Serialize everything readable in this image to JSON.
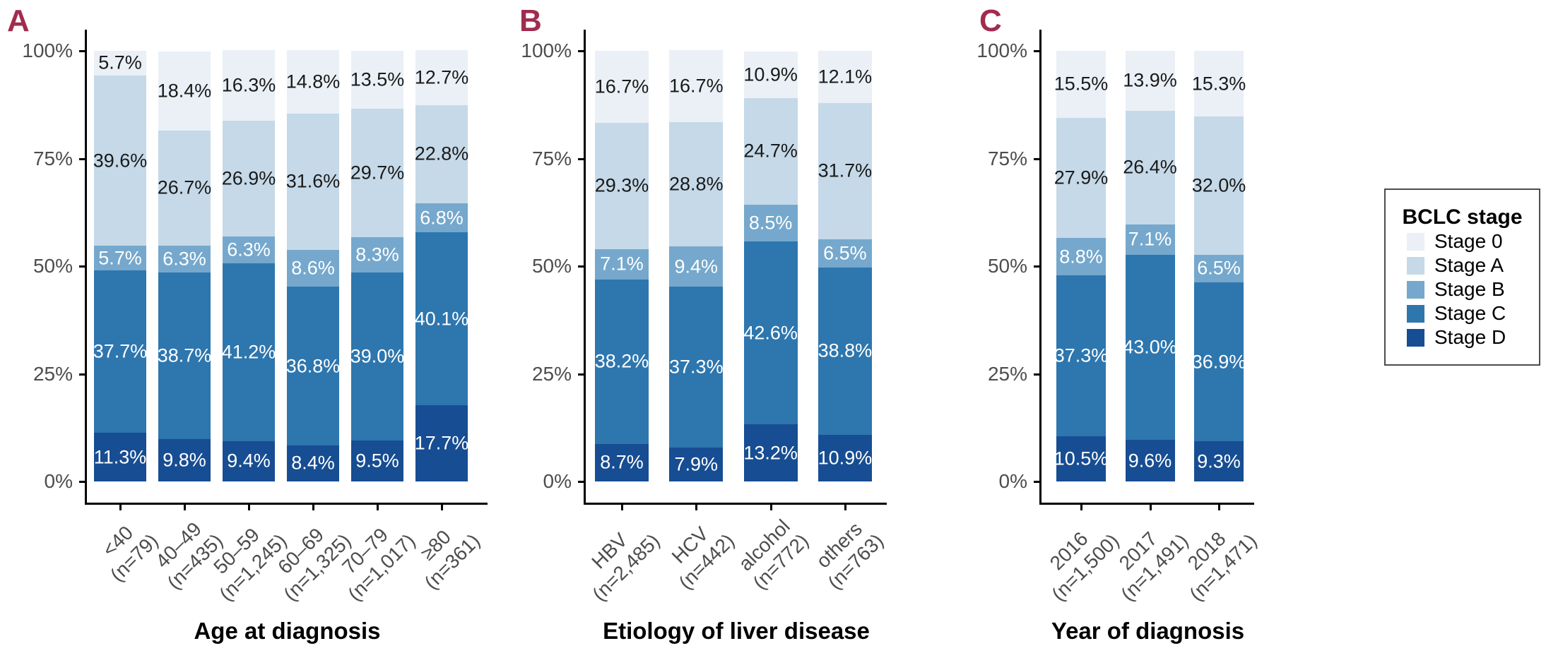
{
  "page": {
    "background": "#ffffff"
  },
  "y_axis": {
    "ticks": [
      "100%",
      "75%",
      "50%",
      "25%",
      "0%"
    ],
    "tick_values": [
      100,
      75,
      50,
      25,
      0
    ]
  },
  "stages": [
    {
      "name": "Stage 0",
      "color": "#eaf0f6",
      "label_color": "#1a1a1a"
    },
    {
      "name": "Stage A",
      "color": "#c5d9e8",
      "label_color": "#1a1a1a"
    },
    {
      "name": "Stage B",
      "color": "#75a8cc",
      "label_color": "#ffffff"
    },
    {
      "name": "Stage C",
      "color": "#2e76ae",
      "label_color": "#ffffff"
    },
    {
      "name": "Stage D",
      "color": "#174d92",
      "label_color": "#ffffff"
    }
  ],
  "legend": {
    "title": "BCLC stage",
    "entries": [
      {
        "label": "Stage 0",
        "color": "#eaf0f6"
      },
      {
        "label": "Stage A",
        "color": "#c5d9e8"
      },
      {
        "label": "Stage B",
        "color": "#75a8cc"
      },
      {
        "label": "Stage C",
        "color": "#2e76ae"
      },
      {
        "label": "Stage D",
        "color": "#174d92"
      }
    ]
  },
  "chart_data": [
    {
      "type": "bar",
      "stacked": true,
      "panel_label": "A",
      "title": "Age at diagnosis",
      "ylim": [
        0,
        100
      ],
      "categories": [
        {
          "line1": "<40",
          "line2": "(n=79)"
        },
        {
          "line1": "40–49",
          "line2": "(n=435)"
        },
        {
          "line1": "50–59",
          "line2": "(n=1,245)"
        },
        {
          "line1": "60–69",
          "line2": "(n=1,325)"
        },
        {
          "line1": "70–79",
          "line2": "(n=1,017)"
        },
        {
          "line1": "≥80",
          "line2": "(n=361)"
        }
      ],
      "series": [
        {
          "name": "Stage 0",
          "values": [
            5.7,
            18.4,
            16.3,
            14.8,
            13.5,
            12.7
          ]
        },
        {
          "name": "Stage A",
          "values": [
            39.6,
            26.7,
            26.9,
            31.6,
            29.7,
            22.8
          ]
        },
        {
          "name": "Stage B",
          "values": [
            5.7,
            6.3,
            6.3,
            8.6,
            8.3,
            6.8
          ]
        },
        {
          "name": "Stage C",
          "values": [
            37.7,
            38.7,
            41.2,
            36.8,
            39.0,
            40.1
          ]
        },
        {
          "name": "Stage D",
          "values": [
            11.3,
            9.8,
            9.4,
            8.4,
            9.5,
            17.7
          ]
        }
      ]
    },
    {
      "type": "bar",
      "stacked": true,
      "panel_label": "B",
      "title": "Etiology of liver disease",
      "ylim": [
        0,
        100
      ],
      "categories": [
        {
          "line1": "HBV",
          "line2": "(n=2,485)"
        },
        {
          "line1": "HCV",
          "line2": "(n=442)"
        },
        {
          "line1": "alcohol",
          "line2": "(n=772)"
        },
        {
          "line1": "others",
          "line2": "(n=763)"
        }
      ],
      "series": [
        {
          "name": "Stage 0",
          "values": [
            16.7,
            16.7,
            10.9,
            12.1
          ]
        },
        {
          "name": "Stage A",
          "values": [
            29.3,
            28.8,
            24.7,
            31.7
          ]
        },
        {
          "name": "Stage B",
          "values": [
            7.1,
            9.4,
            8.5,
            6.5
          ]
        },
        {
          "name": "Stage C",
          "values": [
            38.2,
            37.3,
            42.6,
            38.8
          ]
        },
        {
          "name": "Stage D",
          "values": [
            8.7,
            7.9,
            13.2,
            10.9
          ]
        }
      ]
    },
    {
      "type": "bar",
      "stacked": true,
      "panel_label": "C",
      "title": "Year of diagnosis",
      "ylim": [
        0,
        100
      ],
      "categories": [
        {
          "line1": "2016",
          "line2": "(n=1,500)"
        },
        {
          "line1": "2017",
          "line2": "(n=1,491)"
        },
        {
          "line1": "2018",
          "line2": "(n=1,471)"
        }
      ],
      "series": [
        {
          "name": "Stage 0",
          "values": [
            15.5,
            13.9,
            15.3
          ]
        },
        {
          "name": "Stage A",
          "values": [
            27.9,
            26.4,
            32.0
          ]
        },
        {
          "name": "Stage B",
          "values": [
            8.8,
            7.1,
            6.5
          ]
        },
        {
          "name": "Stage C",
          "values": [
            37.3,
            43.0,
            36.9
          ]
        },
        {
          "name": "Stage D",
          "values": [
            10.5,
            9.6,
            9.3
          ]
        }
      ]
    }
  ]
}
